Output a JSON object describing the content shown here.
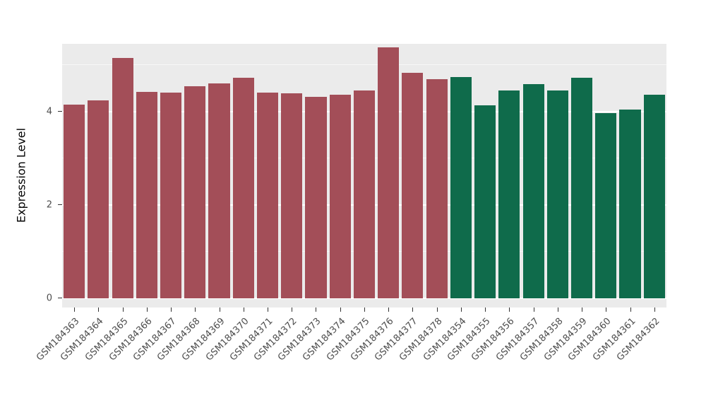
{
  "figure": {
    "background": "#FFFFFF",
    "panel_background": "#EBEBEB",
    "gridline_color": "#FFFFFF",
    "tick_text_color": "#4D4D4D",
    "axis_title_color": "#000000"
  },
  "chart_data": {
    "type": "bar",
    "title": "",
    "xlabel": "",
    "ylabel": "Expression Level",
    "ylim": [
      0,
      5.65
    ],
    "yticks_major": [
      0,
      2,
      4
    ],
    "yticks_minor": [
      1,
      3,
      5
    ],
    "grid": "horizontal major and minor white gridlines on gray panel",
    "legend": "none",
    "categories": [
      "GSM184363",
      "GSM184364",
      "GSM184365",
      "GSM184366",
      "GSM184367",
      "GSM184368",
      "GSM184369",
      "GSM184370",
      "GSM184371",
      "GSM184372",
      "GSM184373",
      "GSM184374",
      "GSM184375",
      "GSM184376",
      "GSM184377",
      "GSM184378",
      "GSM184354",
      "GSM184355",
      "GSM184356",
      "GSM184357",
      "GSM184358",
      "GSM184359",
      "GSM184360",
      "GSM184361",
      "GSM184362"
    ],
    "values": [
      4.15,
      4.25,
      5.15,
      4.42,
      4.41,
      4.54,
      4.6,
      4.72,
      4.41,
      4.39,
      4.32,
      4.37,
      4.46,
      5.38,
      4.84,
      4.7,
      4.74,
      4.13,
      4.46,
      4.59,
      4.46,
      4.72,
      3.97,
      4.04,
      4.37
    ],
    "series": [
      {
        "name": "GSM184363-GSM184378",
        "color": "#A34E58",
        "count": 16
      },
      {
        "name": "GSM184354-GSM184362",
        "color": "#0F6B4B",
        "count": 9
      }
    ],
    "bar_colors": [
      "#A34E58",
      "#A34E58",
      "#A34E58",
      "#A34E58",
      "#A34E58",
      "#A34E58",
      "#A34E58",
      "#A34E58",
      "#A34E58",
      "#A34E58",
      "#A34E58",
      "#A34E58",
      "#A34E58",
      "#A34E58",
      "#A34E58",
      "#A34E58",
      "#0F6B4B",
      "#0F6B4B",
      "#0F6B4B",
      "#0F6B4B",
      "#0F6B4B",
      "#0F6B4B",
      "#0F6B4B",
      "#0F6B4B",
      "#0F6B4B"
    ]
  }
}
